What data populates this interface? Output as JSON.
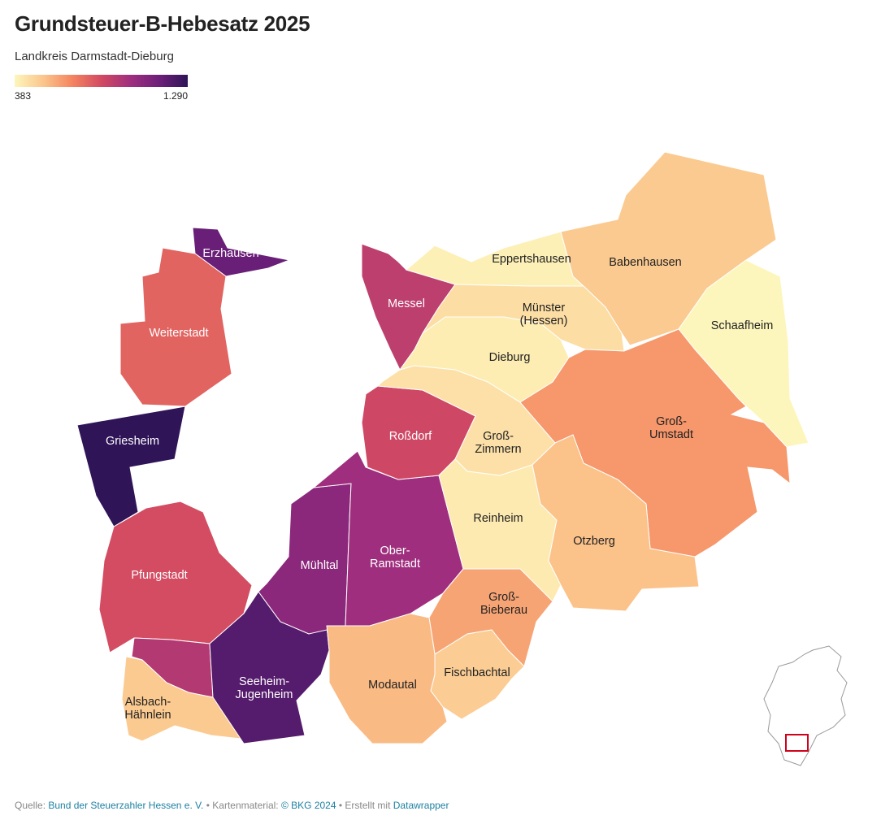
{
  "title": "Grundsteuer-B-Hebesatz 2025",
  "subtitle": "Landkreis Darmstadt-Dieburg",
  "chart_data": {
    "type": "choropleth",
    "scale": {
      "min": 383,
      "max": {
        "value": 1290,
        "label": "1.290"
      },
      "colors": [
        "#fdf6bc",
        "#fbc58c",
        "#f4845f",
        "#d24a62",
        "#a02f7e",
        "#6e1f7a",
        "#2f1457"
      ]
    },
    "regions": [
      {
        "label_lines": [
          "Erzhausen"
        ],
        "value": 1150
      },
      {
        "label_lines": [
          "Weiterstadt"
        ],
        "value": 770
      },
      {
        "label_lines": [
          "Griesheim"
        ],
        "value": 1290
      },
      {
        "label_lines": [
          "Pfungstadt"
        ],
        "value": 830
      },
      {
        "label_lines": null,
        "value": 930
      },
      {
        "label_lines": [
          "Alsbach-",
          "Hähnlein"
        ],
        "value": 520
      },
      {
        "label_lines": [
          "Seeheim-",
          "Jugenheim"
        ],
        "value": 1200
      },
      {
        "label_lines": [
          "Mühltal"
        ],
        "value": 1050
      },
      {
        "label_lines": [
          "Ober-",
          "Ramstadt"
        ],
        "value": 990
      },
      {
        "label_lines": [
          "Messel"
        ],
        "value": 900
      },
      {
        "label_lines": [
          "Roßdorf"
        ],
        "value": 850
      },
      {
        "label_lines": [
          "Eppertshausen"
        ],
        "value": 400
      },
      {
        "label_lines": [
          "Babenhausen"
        ],
        "value": 520
      },
      {
        "label_lines": [
          "Schaafheim"
        ],
        "value": 383
      },
      {
        "label_lines": [
          "Münster",
          "(Hessen)"
        ],
        "value": 460
      },
      {
        "label_lines": [
          "Dieburg"
        ],
        "value": 410
      },
      {
        "label_lines": [
          "Groß-",
          "Zimmern"
        ],
        "value": 450
      },
      {
        "label_lines": [
          "Groß-",
          "Umstadt"
        ],
        "value": 640
      },
      {
        "label_lines": [
          "Reinheim"
        ],
        "value": 420
      },
      {
        "label_lines": [
          "Otzberg"
        ],
        "value": 540
      },
      {
        "label_lines": [
          "Groß-",
          "Bieberau"
        ],
        "value": 610
      },
      {
        "label_lines": [
          "Fischbachtal"
        ],
        "value": 510
      },
      {
        "label_lines": [
          "Modautal"
        ],
        "value": 560
      }
    ]
  },
  "footer": {
    "source_label": "Quelle:",
    "source": "Bund der Steuerzahler Hessen e. V.",
    "map_label": "• Kartenmaterial:",
    "map_source": "© BKG 2024",
    "tool_label": "• Erstellt mit",
    "tool": "Datawrapper"
  }
}
